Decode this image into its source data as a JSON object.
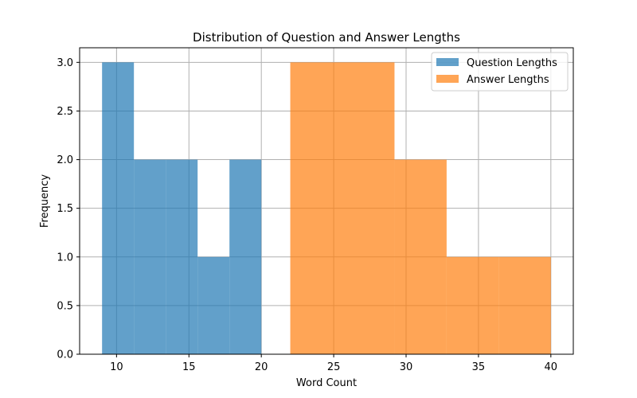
{
  "chart_data": {
    "type": "bar",
    "title": "Distribution of Question and Answer Lengths",
    "xlabel": "Word Count",
    "ylabel": "Frequency",
    "xlim": [
      7.45,
      41.55
    ],
    "ylim": [
      0,
      3.15
    ],
    "xticks": [
      10,
      15,
      20,
      25,
      30,
      35,
      40
    ],
    "yticks": [
      0.0,
      0.5,
      1.0,
      1.5,
      2.0,
      2.5,
      3.0
    ],
    "xtick_labels": [
      "10",
      "15",
      "20",
      "25",
      "30",
      "35",
      "40"
    ],
    "ytick_labels": [
      "0.0",
      "0.5",
      "1.0",
      "1.5",
      "2.0",
      "2.5",
      "3.0"
    ],
    "grid": true,
    "legend_position": "upper right",
    "series": [
      {
        "name": "Question Lengths",
        "color": "#1f77b4",
        "opacity": 0.7,
        "bin_edges": [
          9,
          11.2,
          13.4,
          15.6,
          17.8,
          20
        ],
        "counts": [
          3,
          2,
          2,
          1,
          2
        ]
      },
      {
        "name": "Answer Lengths",
        "color": "#ff7f0e",
        "opacity": 0.7,
        "bin_edges": [
          22,
          25.6,
          29.2,
          32.8,
          36.4,
          40
        ],
        "counts": [
          3,
          3,
          2,
          1,
          1
        ]
      }
    ]
  }
}
